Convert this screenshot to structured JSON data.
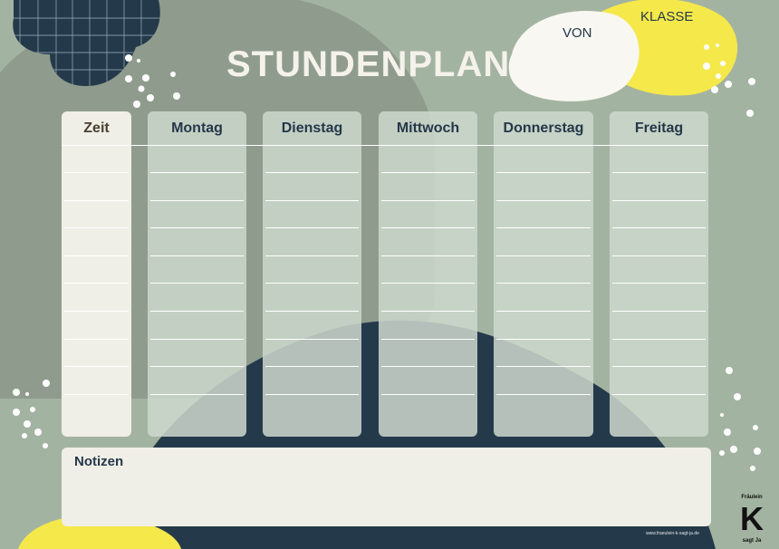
{
  "header": {
    "title": "STUNDENPLAN",
    "von_label": "VON",
    "klasse_label": "KLASSE"
  },
  "columns": [
    {
      "label": "Zeit"
    },
    {
      "label": "Montag"
    },
    {
      "label": "Dienstag"
    },
    {
      "label": "Mittwoch"
    },
    {
      "label": "Donnerstag"
    },
    {
      "label": "Freitag"
    }
  ],
  "notes": {
    "label": "Notizen"
  },
  "footer": {
    "url": "www.fraeulein-k-sagt-ja.de",
    "logo_top": "Fräulein",
    "logo_letter": "K",
    "logo_bottom": "sagt Ja"
  },
  "colors": {
    "background": "#a3b3a2",
    "dark_sage": "#8f9c8d",
    "navy": "#243a4b",
    "yellow": "#f5e84a",
    "cream": "#f0efe7"
  }
}
